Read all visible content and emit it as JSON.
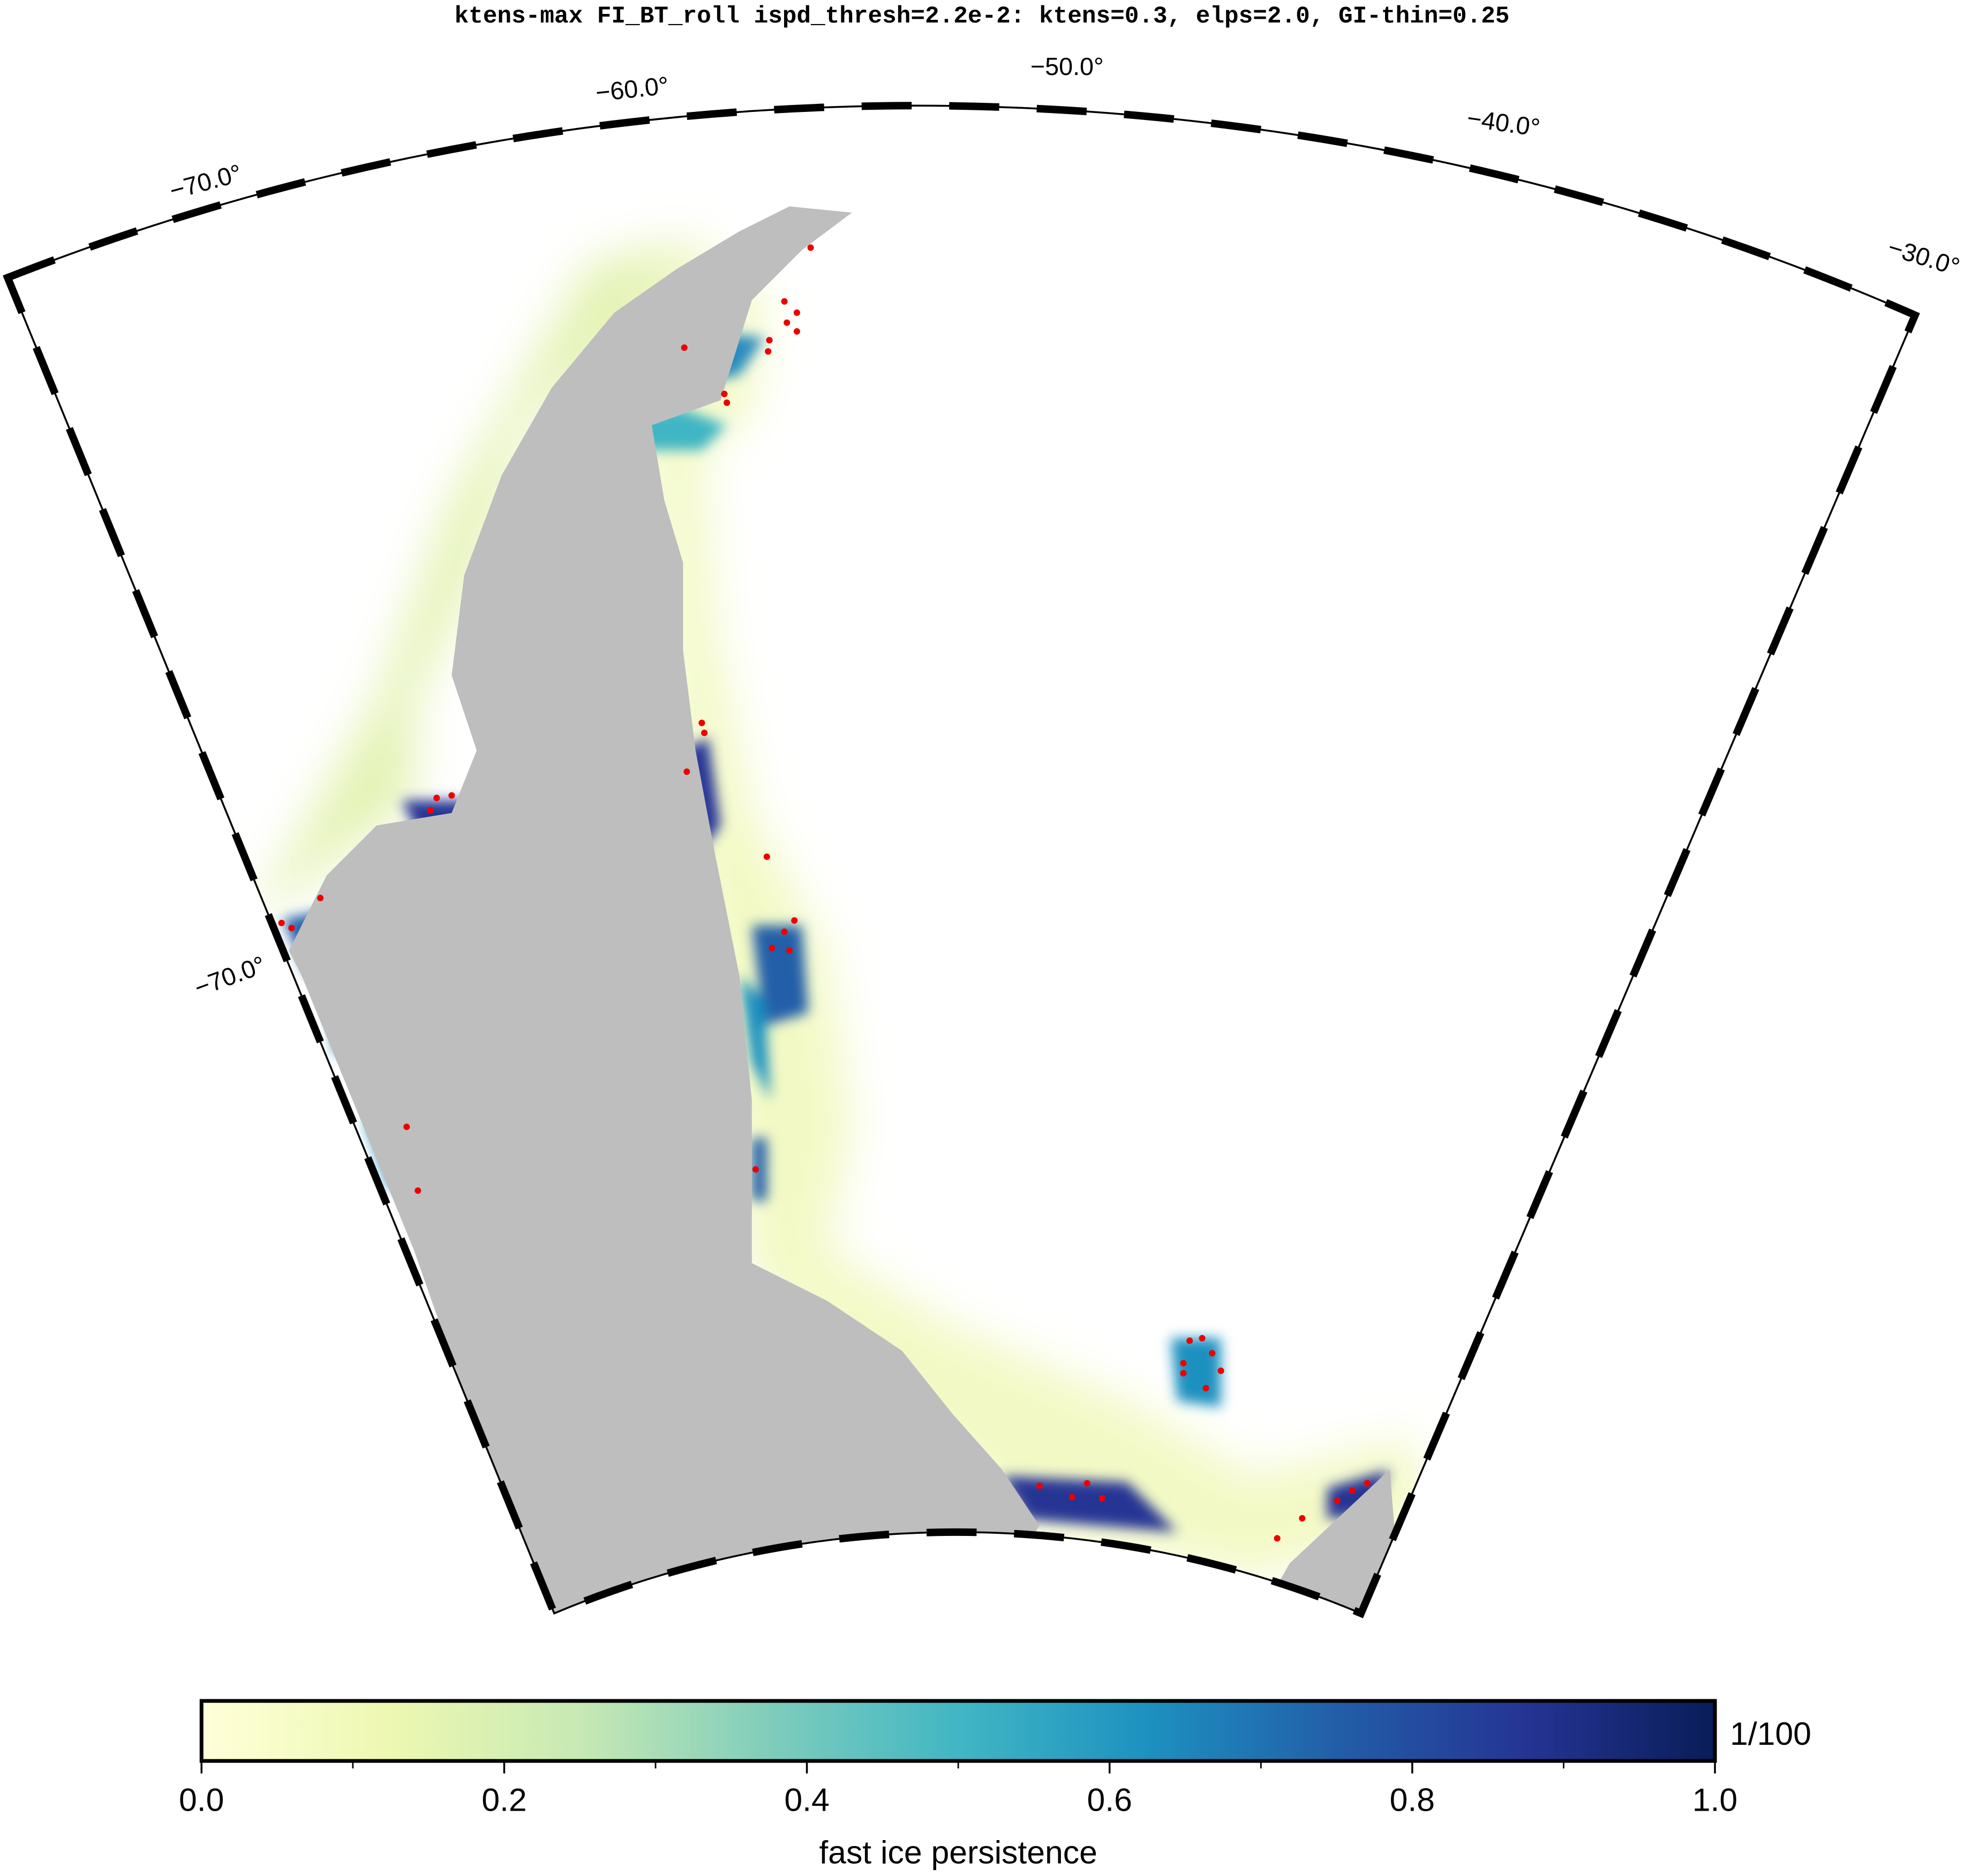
{
  "title": "ktens-max FI_BT_roll ispd_thresh=2.2e-2: ktens=0.3, elps=2.0, GI-thin=0.25",
  "map": {
    "lon_labels": [
      "−70.0°",
      "−60.0°",
      "−50.0°",
      "−40.0°",
      "−30.0°"
    ],
    "lat_labels": [
      "−70.0°"
    ]
  },
  "colorbar": {
    "label": "fast ice persistence",
    "unit": "1/100",
    "range": [
      0,
      1
    ],
    "ticks": [
      {
        "value": 0,
        "label": "0.0"
      },
      {
        "value": 0.2,
        "label": "0.2"
      },
      {
        "value": 0.4,
        "label": "0.4"
      },
      {
        "value": 0.6,
        "label": "0.6"
      },
      {
        "value": 0.8,
        "label": "0.8"
      },
      {
        "value": 1,
        "label": "1.0"
      }
    ],
    "minor_ticks": [
      0.1,
      0.3,
      0.5,
      0.7,
      0.9
    ]
  }
}
